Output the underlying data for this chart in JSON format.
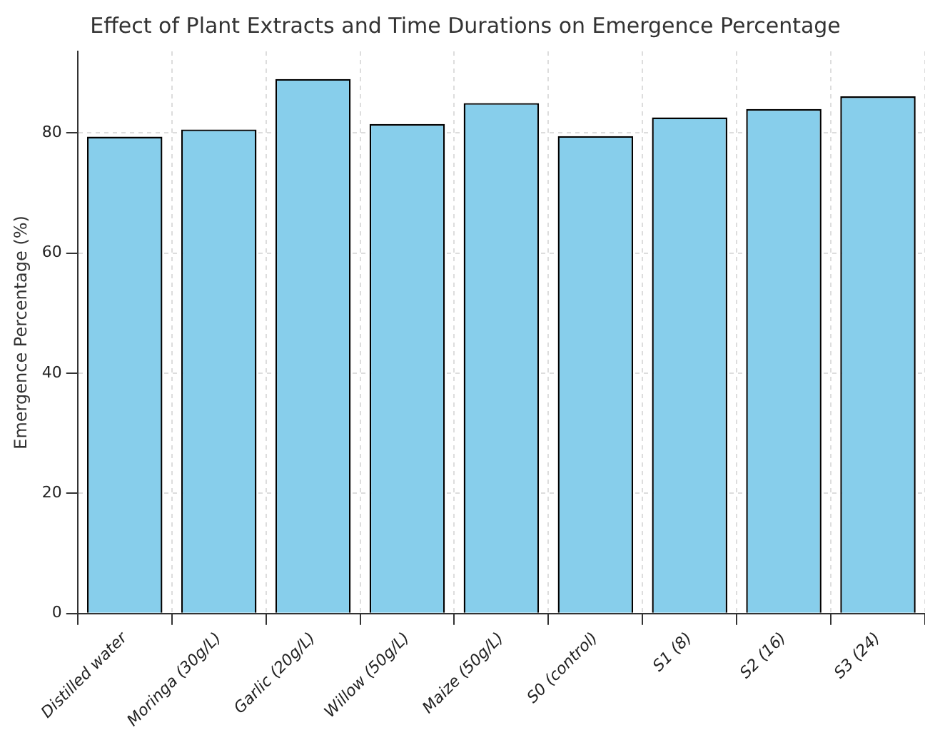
{
  "chart_data": {
    "type": "bar",
    "title": "Effect of Plant Extracts and Time Durations on Emergence Percentage",
    "ylabel": "Emergence Percentage (%)",
    "categories": [
      "Distilled water",
      "Moringa (30g/L)",
      "Garlic (20g/L)",
      "Willow (50g/L)",
      "Maize (50g/L)",
      "S0 (control)",
      "S1 (8)",
      "S2 (16)",
      "S3 (24)"
    ],
    "values": [
      79.4,
      80.6,
      89.0,
      81.5,
      85.0,
      79.5,
      82.6,
      84.0,
      86.1
    ],
    "color": "#87ceeb",
    "ylim": [
      0,
      93.6
    ],
    "yticks": [
      0,
      20,
      40,
      60,
      80
    ],
    "grid": true
  }
}
